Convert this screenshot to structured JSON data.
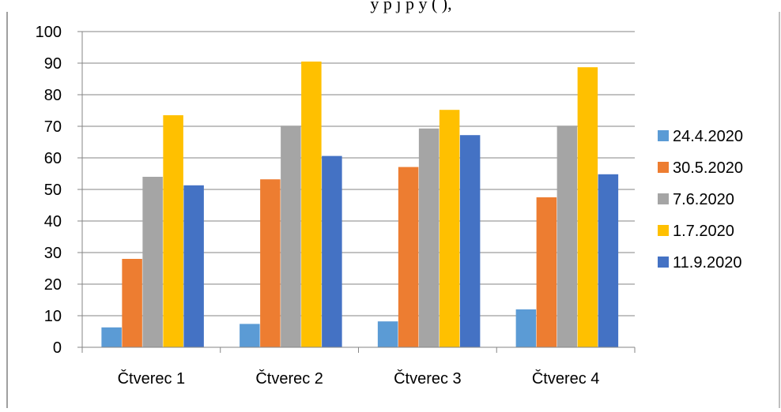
{
  "chart_data": {
    "type": "bar",
    "title": "y p         j         p       y (   ),",
    "categories": [
      "Čtverec 1",
      "Čtverec 2",
      "Čtverec 3",
      "Čtverec 4"
    ],
    "series": [
      {
        "name": "24.4.2020",
        "color": "#5B9BD5",
        "values": [
          6.3,
          7.4,
          8.2,
          12.0
        ]
      },
      {
        "name": "30.5.2020",
        "color": "#ED7D31",
        "values": [
          28.0,
          53.2,
          57.1,
          47.5
        ]
      },
      {
        "name": "7.6.2020",
        "color": "#A5A5A5",
        "values": [
          54.0,
          70.2,
          69.3,
          70.2
        ]
      },
      {
        "name": "1.7.2020",
        "color": "#FFC000",
        "values": [
          73.5,
          90.5,
          75.2,
          88.7
        ]
      },
      {
        "name": "11.9.2020",
        "color": "#4472C4",
        "values": [
          51.3,
          60.6,
          67.2,
          54.8
        ]
      }
    ],
    "ylim": [
      0,
      100
    ],
    "yticks": [
      0,
      10,
      20,
      30,
      40,
      50,
      60,
      70,
      80,
      90,
      100
    ],
    "grid": true,
    "legend_position": "right",
    "xlabel": "",
    "ylabel": ""
  }
}
